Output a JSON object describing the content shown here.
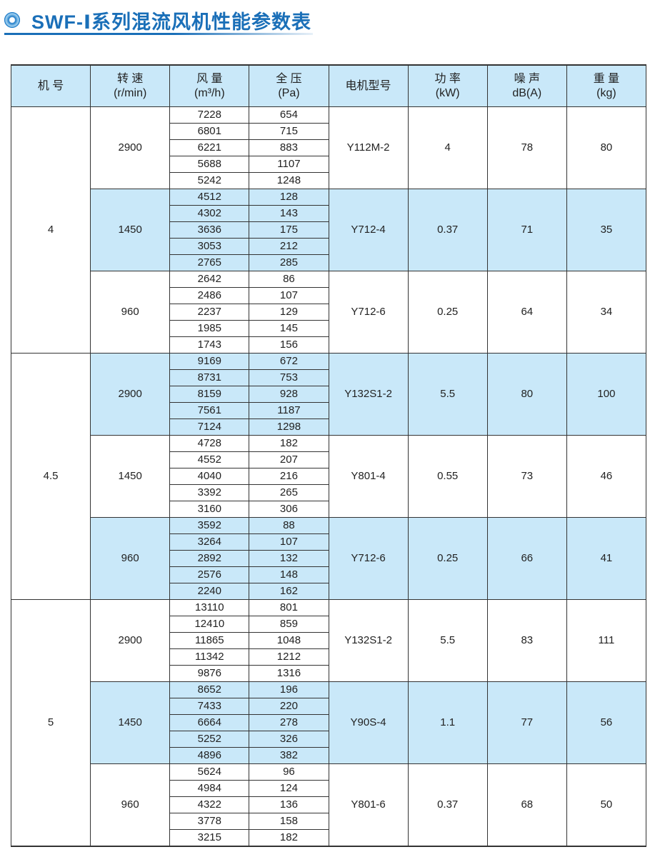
{
  "title": "SWF-Ⅰ系列混流风机性能参数表",
  "headers": [
    {
      "l1": "机 号",
      "l2": ""
    },
    {
      "l1": "转 速",
      "l2": "(r/min)"
    },
    {
      "l1": "风 量",
      "l2": "(m³/h)"
    },
    {
      "l1": "全 压",
      "l2": "(Pa)"
    },
    {
      "l1": "电机型号",
      "l2": ""
    },
    {
      "l1": "功 率",
      "l2": "(kW)"
    },
    {
      "l1": "噪 声",
      "l2": "dB(A)"
    },
    {
      "l1": "重 量",
      "l2": "(kg)"
    }
  ],
  "colors": {
    "shade": "#c9e8f9",
    "title": "#1a6fb8"
  },
  "models": [
    {
      "no": "4",
      "groups": [
        {
          "speed": "2900",
          "motor": "Y112M-2",
          "power": "4",
          "noise": "78",
          "weight": "80",
          "shaded": false,
          "flow": [
            "7228",
            "6801",
            "6221",
            "5688",
            "5242"
          ],
          "pressure": [
            "654",
            "715",
            "883",
            "1107",
            "1248"
          ]
        },
        {
          "speed": "1450",
          "motor": "Y712-4",
          "power": "0.37",
          "noise": "71",
          "weight": "35",
          "shaded": true,
          "flow": [
            "4512",
            "4302",
            "3636",
            "3053",
            "2765"
          ],
          "pressure": [
            "128",
            "143",
            "175",
            "212",
            "285"
          ]
        },
        {
          "speed": "960",
          "motor": "Y712-6",
          "power": "0.25",
          "noise": "64",
          "weight": "34",
          "shaded": false,
          "flow": [
            "2642",
            "2486",
            "2237",
            "1985",
            "1743"
          ],
          "pressure": [
            "86",
            "107",
            "129",
            "145",
            "156"
          ]
        }
      ]
    },
    {
      "no": "4.5",
      "groups": [
        {
          "speed": "2900",
          "motor": "Y132S1-2",
          "power": "5.5",
          "noise": "80",
          "weight": "100",
          "shaded": true,
          "flow": [
            "9169",
            "8731",
            "8159",
            "7561",
            "7124"
          ],
          "pressure": [
            "672",
            "753",
            "928",
            "1187",
            "1298"
          ]
        },
        {
          "speed": "1450",
          "motor": "Y801-4",
          "power": "0.55",
          "noise": "73",
          "weight": "46",
          "shaded": false,
          "flow": [
            "4728",
            "4552",
            "4040",
            "3392",
            "3160"
          ],
          "pressure": [
            "182",
            "207",
            "216",
            "265",
            "306"
          ]
        },
        {
          "speed": "960",
          "motor": "Y712-6",
          "power": "0.25",
          "noise": "66",
          "weight": "41",
          "shaded": true,
          "flow": [
            "3592",
            "3264",
            "2892",
            "2576",
            "2240"
          ],
          "pressure": [
            "88",
            "107",
            "132",
            "148",
            "162"
          ]
        }
      ]
    },
    {
      "no": "5",
      "groups": [
        {
          "speed": "2900",
          "motor": "Y132S1-2",
          "power": "5.5",
          "noise": "83",
          "weight": "111",
          "shaded": false,
          "flow": [
            "13110",
            "12410",
            "11865",
            "11342",
            "9876"
          ],
          "pressure": [
            "801",
            "859",
            "1048",
            "1212",
            "1316"
          ]
        },
        {
          "speed": "1450",
          "motor": "Y90S-4",
          "power": "1.1",
          "noise": "77",
          "weight": "56",
          "shaded": true,
          "flow": [
            "8652",
            "7433",
            "6664",
            "5252",
            "4896"
          ],
          "pressure": [
            "196",
            "220",
            "278",
            "326",
            "382"
          ]
        },
        {
          "speed": "960",
          "motor": "Y801-6",
          "power": "0.37",
          "noise": "68",
          "weight": "50",
          "shaded": false,
          "flow": [
            "5624",
            "4984",
            "4322",
            "3778",
            "3215"
          ],
          "pressure": [
            "96",
            "124",
            "136",
            "158",
            "182"
          ]
        }
      ]
    }
  ]
}
